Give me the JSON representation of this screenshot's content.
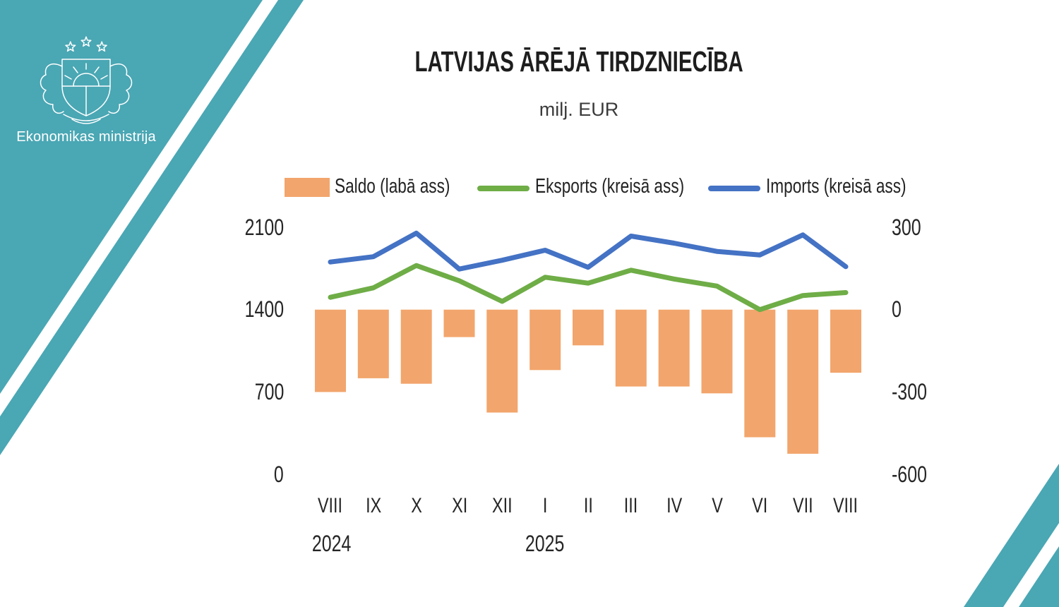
{
  "branding": {
    "ministry_name": "Ekonomikas ministrija",
    "emblem_icon": "latvia-coat-of-arms-icon",
    "teal_color": "#4AA7B4",
    "stripe_color": "#FFFFFF"
  },
  "header": {
    "title": "LATVIJAS ĀRĒJĀ TIRDZNIECĪBA",
    "subtitle": "milj. EUR"
  },
  "legend": [
    {
      "label": "Saldo (labā ass)",
      "type": "bar",
      "color": "#F2A56C"
    },
    {
      "label": "Eksports (kreisā ass)",
      "type": "line",
      "color": "#6FAD47"
    },
    {
      "label": "Imports (kreisā ass)",
      "type": "line",
      "color": "#4472C4"
    }
  ],
  "chart_data": {
    "type": "combo-bar-line",
    "title": "LATVIJAS ĀRĒJĀ TIRDZNIECĪBA",
    "subtitle": "milj. EUR",
    "grid": false,
    "legend_position": "top",
    "categories": [
      "VIII",
      "IX",
      "X",
      "XI",
      "XII",
      "I",
      "II",
      "III",
      "IV",
      "V",
      "VI",
      "VII",
      "VIII"
    ],
    "year_labels": [
      {
        "label": "2024",
        "under_category_index": 0
      },
      {
        "label": "2025",
        "under_category_index": 5
      }
    ],
    "left_axis": {
      "title": "",
      "range": [
        0,
        2100
      ],
      "ticks": [
        "2100",
        "1400",
        "700",
        "0"
      ]
    },
    "right_axis": {
      "title": "",
      "range": [
        -600,
        300
      ],
      "ticks": [
        "300",
        "0",
        "-300",
        "-600"
      ]
    },
    "series": [
      {
        "name": "Saldo (labā ass)",
        "type": "bar",
        "axis": "right",
        "color": "#F2A56C",
        "values": [
          -300,
          -250,
          -270,
          -100,
          -375,
          -220,
          -130,
          -280,
          -280,
          -305,
          -465,
          -525,
          -230
        ]
      },
      {
        "name": "Eksports (kreisā ass)",
        "type": "line",
        "axis": "left",
        "color": "#6FAD47",
        "values": [
          1505,
          1585,
          1775,
          1645,
          1470,
          1675,
          1625,
          1735,
          1660,
          1600,
          1400,
          1520,
          1545
        ]
      },
      {
        "name": "Imports (kreisā ass)",
        "type": "line",
        "axis": "left",
        "color": "#4472C4",
        "values": [
          1805,
          1850,
          2050,
          1745,
          1820,
          1905,
          1760,
          2025,
          1965,
          1895,
          1865,
          2035,
          1765
        ]
      }
    ]
  }
}
